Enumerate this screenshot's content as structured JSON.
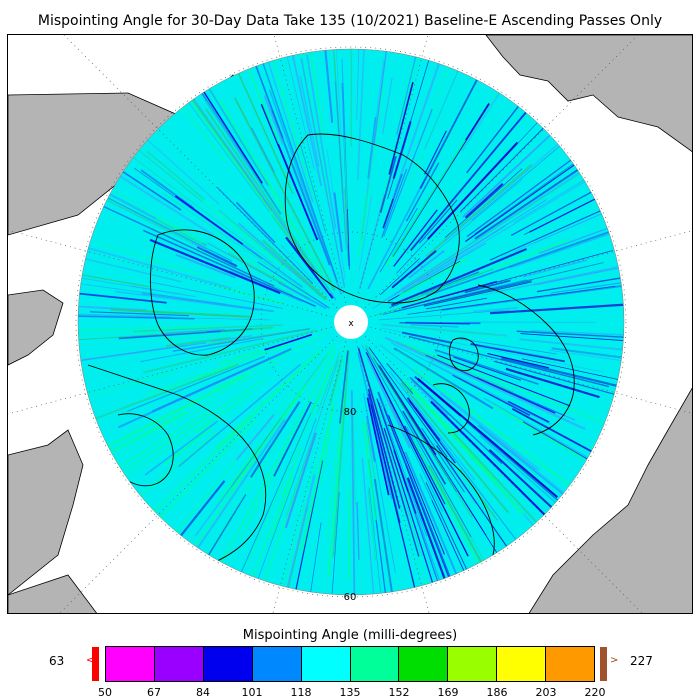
{
  "title": "Mispointing Angle for 30-Day Data Take 135 (10/2021) Baseline-E Ascending Passes Only",
  "map": {
    "projection": "north-polar-stereographic",
    "ocean_color": "#ffffff",
    "land_color": "#b4b4b4",
    "coverage_dominant_color": "#00ffff",
    "pole_marker": "x",
    "latitude_labels": [
      "80",
      "60"
    ]
  },
  "colorbar": {
    "title": "Mispointing Angle (milli-degrees)",
    "min_value": "63",
    "max_value": "227",
    "under_color": "#ff0000",
    "over_color": "#a0522d",
    "ticks": [
      "50",
      "67",
      "84",
      "101",
      "118",
      "135",
      "152",
      "169",
      "186",
      "203",
      "220"
    ],
    "colors": [
      "#ff00ff",
      "#9900ff",
      "#0000ee",
      "#0088ff",
      "#00ffff",
      "#00ff99",
      "#00dd00",
      "#99ff00",
      "#ffff00",
      "#ff9900"
    ]
  }
}
